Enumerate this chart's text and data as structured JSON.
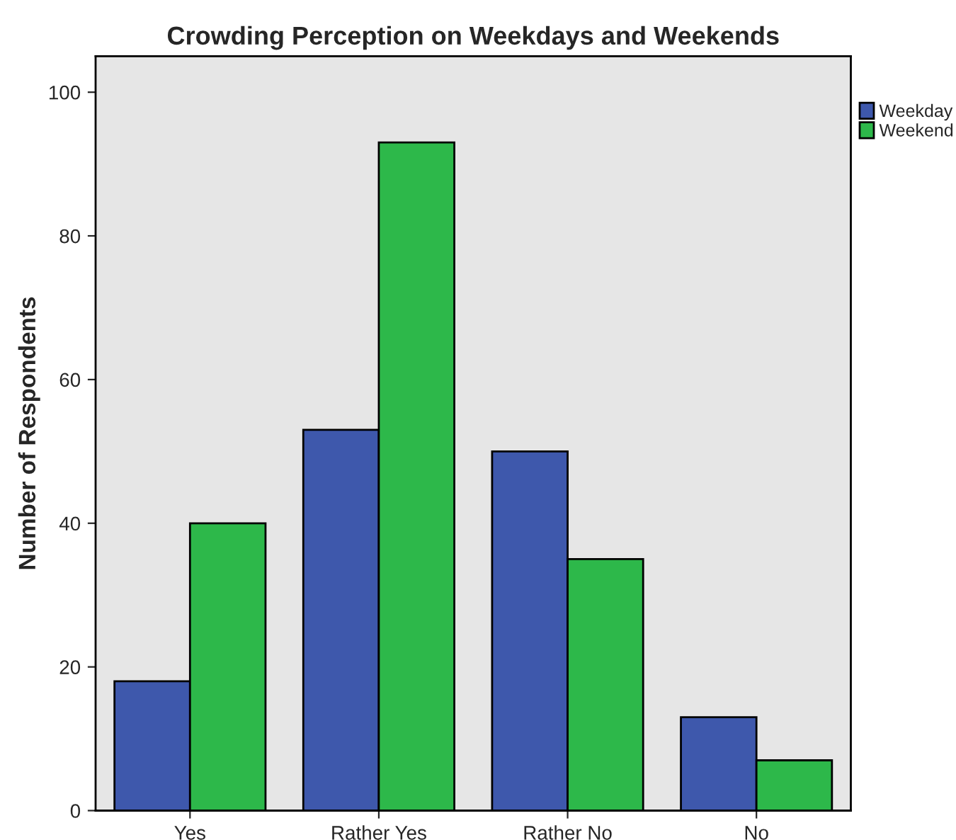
{
  "chart_data": {
    "type": "bar",
    "title": "Crowding Perception on Weekdays and Weekends",
    "ylabel": "Number of Respondents",
    "categories": [
      "Yes",
      "Rather Yes",
      "Rather No",
      "No"
    ],
    "series": [
      {
        "name": "Weekday",
        "color": "#3e58ac",
        "values": [
          18,
          53,
          50,
          13
        ]
      },
      {
        "name": "Weekend",
        "color": "#2db84a",
        "values": [
          40,
          93,
          35,
          7
        ]
      }
    ],
    "ylim": [
      0,
      105
    ],
    "yticks": [
      0,
      20,
      40,
      60,
      80,
      100
    ],
    "grid": false,
    "legend": "top right"
  }
}
